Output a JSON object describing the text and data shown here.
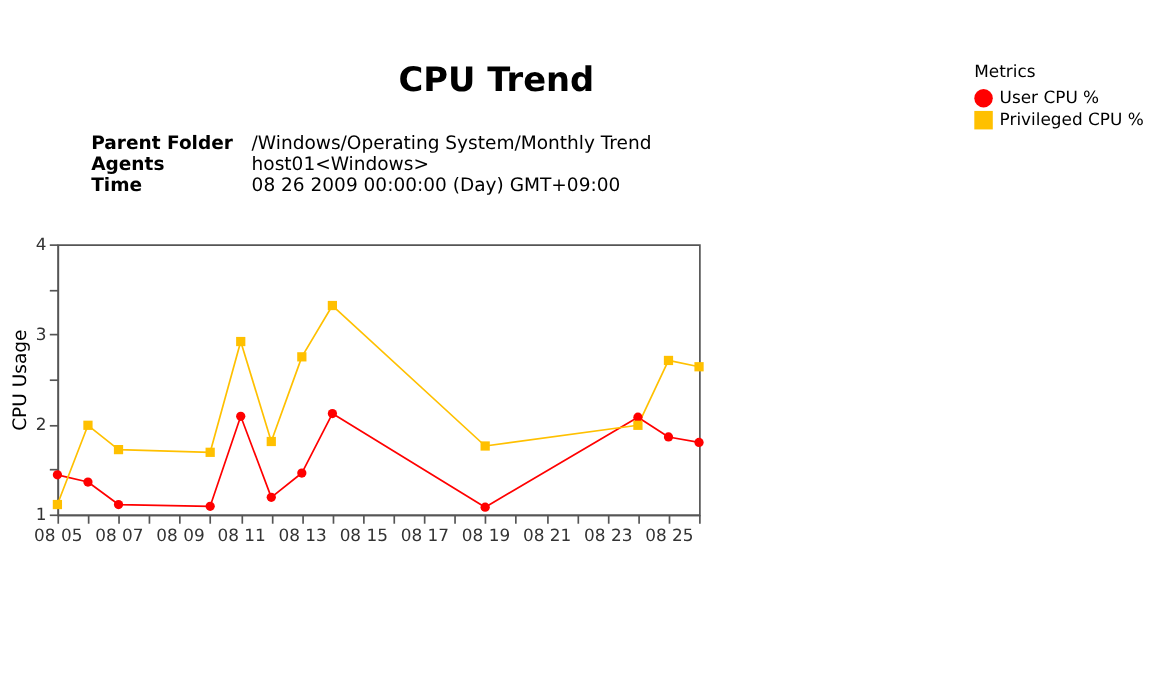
{
  "chart_data": {
    "type": "line",
    "title": "CPU Trend",
    "annotations": [
      "Parent Folder",
      "/Windows/Operating System/Monthly Trend",
      "Agents",
      "host01<Windows>",
      "Time",
      "08 26 2009 00:00:00  (Day)  GMT+09:00"
    ],
    "ylabel": "CPU Usage",
    "legend_title": "Metrics",
    "legend": "right",
    "grid": false,
    "x": [
      "2009-08-05",
      "2009-08-06",
      "2009-08-07",
      "2009-08-10",
      "2009-08-11",
      "2009-08-12",
      "2009-08-13",
      "2009-08-14",
      "2009-08-19",
      "2009-08-24",
      "2009-08-25",
      "2009-08-26"
    ],
    "xlim": [
      "2009-08-05",
      "2009-08-26"
    ],
    "xticks": [
      {
        "value": "2009-08-05",
        "label": "08 05"
      },
      {
        "value": "2009-08-06",
        "label": null
      },
      {
        "value": "2009-08-07",
        "label": "08 07"
      },
      {
        "value": "2009-08-08",
        "label": null
      },
      {
        "value": "2009-08-09",
        "label": "08 09"
      },
      {
        "value": "2009-08-10",
        "label": null
      },
      {
        "value": "2009-08-11",
        "label": "08 11"
      },
      {
        "value": "2009-08-12",
        "label": null
      },
      {
        "value": "2009-08-13",
        "label": "08 13"
      },
      {
        "value": "2009-08-14",
        "label": null
      },
      {
        "value": "2009-08-15",
        "label": "08 15"
      },
      {
        "value": "2009-08-16",
        "label": null
      },
      {
        "value": "2009-08-17",
        "label": "08 17"
      },
      {
        "value": "2009-08-18",
        "label": null
      },
      {
        "value": "2009-08-19",
        "label": "08 19"
      },
      {
        "value": "2009-08-20",
        "label": null
      },
      {
        "value": "2009-08-21",
        "label": "08 21"
      },
      {
        "value": "2009-08-22",
        "label": null
      },
      {
        "value": "2009-08-23",
        "label": "08 23"
      },
      {
        "value": "2009-08-24",
        "label": null
      },
      {
        "value": "2009-08-25",
        "label": "08 25"
      },
      {
        "value": "2009-08-26",
        "label": null
      }
    ],
    "ylim": [
      1,
      4
    ],
    "yticks": [
      1,
      {
        "value": 1.5,
        "label": null
      },
      2,
      {
        "value": 2.5,
        "label": null
      },
      3,
      {
        "value": 3.5,
        "label": null
      },
      4
    ],
    "series": [
      {
        "name": "User CPU %",
        "color": "#ff0000",
        "marker": "circle",
        "values": [
          1.44,
          1.36,
          1.11,
          1.09,
          2.09,
          1.19,
          1.46,
          2.12,
          1.08,
          2.08,
          1.86,
          1.8
        ]
      },
      {
        "name": "Privileged CPU %",
        "color": "#ffc000",
        "marker": "square",
        "values": [
          1.11,
          1.99,
          1.72,
          1.69,
          2.92,
          1.81,
          2.75,
          3.32,
          1.76,
          1.99,
          2.71,
          2.64
        ]
      }
    ]
  }
}
